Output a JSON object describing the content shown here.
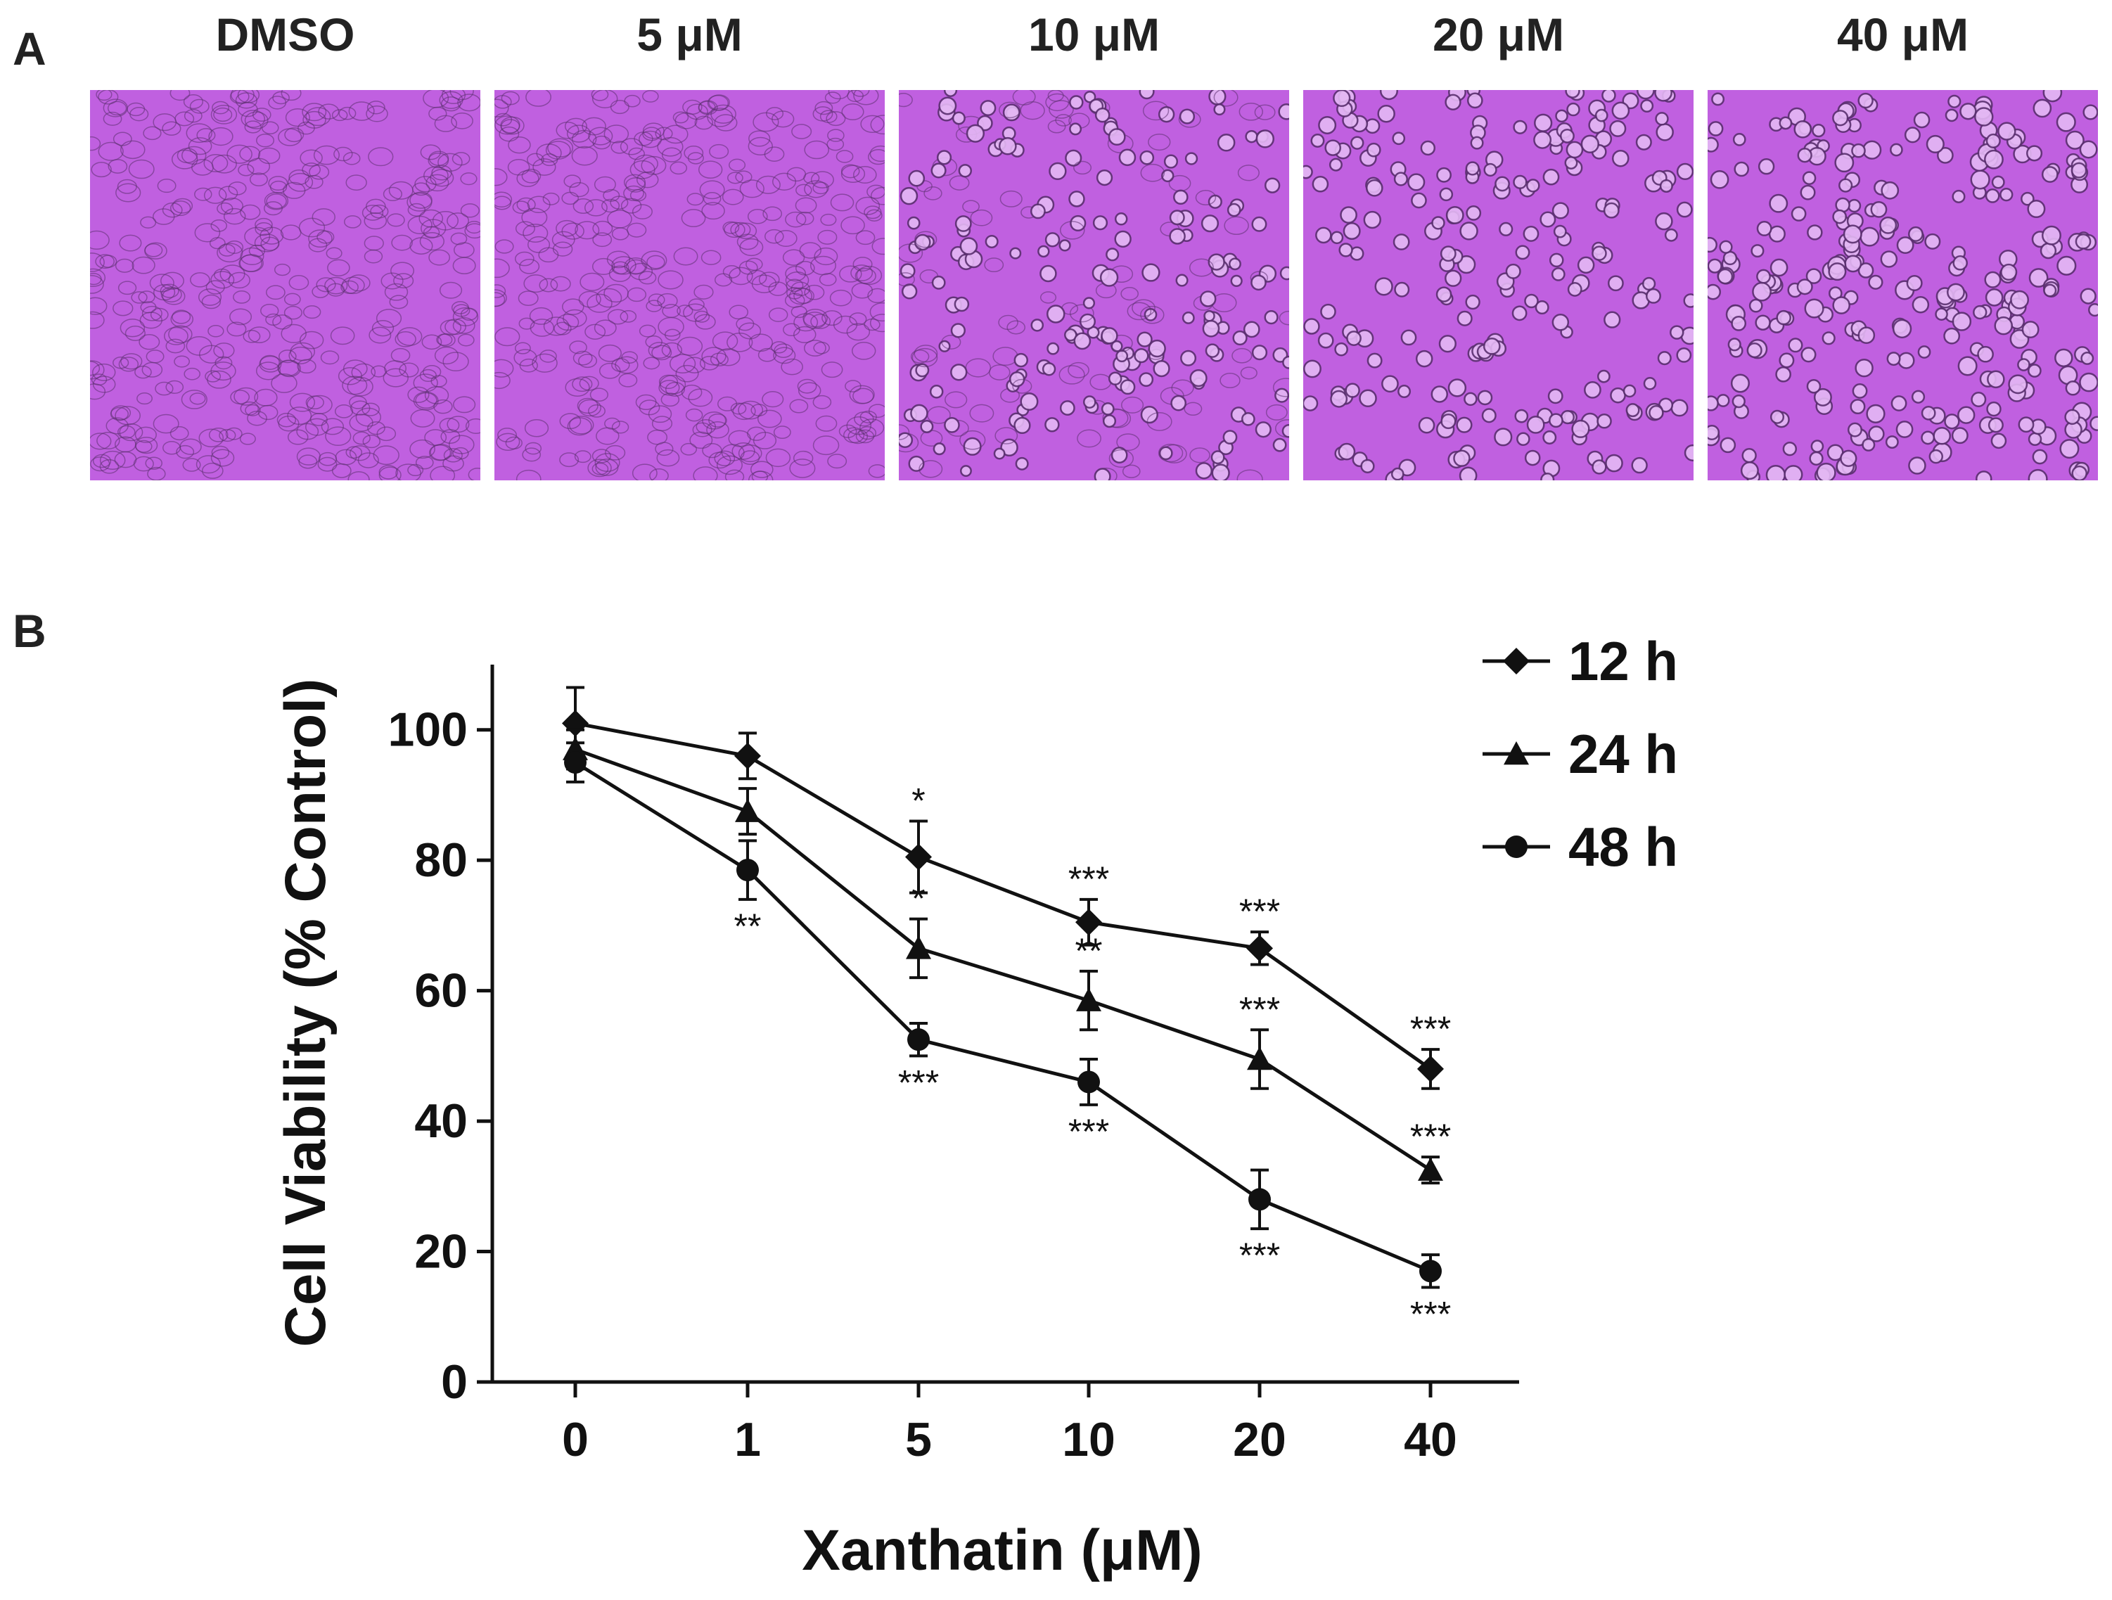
{
  "panel_a": {
    "letter": "A",
    "images": [
      {
        "label": "DMSO",
        "cells": "dense"
      },
      {
        "label": "5 μM",
        "cells": "dense"
      },
      {
        "label": "10 μM",
        "cells": "medium"
      },
      {
        "label": "20 μM",
        "cells": "sparse"
      },
      {
        "label": "40 μM",
        "cells": "rounded"
      }
    ],
    "colors": {
      "stain": "#c060e0",
      "cell": "#e4b8f4",
      "cell_edge": "#5b3070"
    }
  },
  "panel_b": {
    "letter": "B"
  },
  "chart_data": {
    "type": "line",
    "title": "",
    "xlabel": "Xanthatin (μM)",
    "ylabel": "Cell Viability (% Control)",
    "categories": [
      "0",
      "1",
      "5",
      "10",
      "20",
      "40"
    ],
    "x_scale": "categorical",
    "ylim": [
      0,
      110
    ],
    "yticks": [
      0,
      20,
      40,
      60,
      80,
      100
    ],
    "grid": false,
    "legend_position": "top-right",
    "series": [
      {
        "name": "12 h",
        "marker": "diamond",
        "values": [
          101,
          96,
          80.5,
          70.5,
          66.5,
          48
        ],
        "errors": [
          5.5,
          3.5,
          5.5,
          3.5,
          2.5,
          3
        ],
        "significance": [
          "",
          "",
          "*",
          "***",
          "***",
          "***"
        ]
      },
      {
        "name": "24 h",
        "marker": "triangle",
        "values": [
          97,
          87.5,
          66.5,
          58.5,
          49.5,
          32.5
        ],
        "errors": [
          3,
          3.5,
          4.5,
          4.5,
          4.5,
          2
        ],
        "significance": [
          "",
          "",
          "*",
          "**",
          "***",
          "***"
        ]
      },
      {
        "name": "48 h",
        "marker": "circle",
        "values": [
          95,
          78.5,
          52.5,
          46,
          28,
          17
        ],
        "errors": [
          3,
          4.5,
          2.5,
          3.5,
          4.5,
          2.5
        ],
        "significance": [
          "",
          "**",
          "***",
          "***",
          "***",
          "***"
        ]
      }
    ],
    "colors": {
      "line": "#111111",
      "axis": "#111111"
    }
  }
}
